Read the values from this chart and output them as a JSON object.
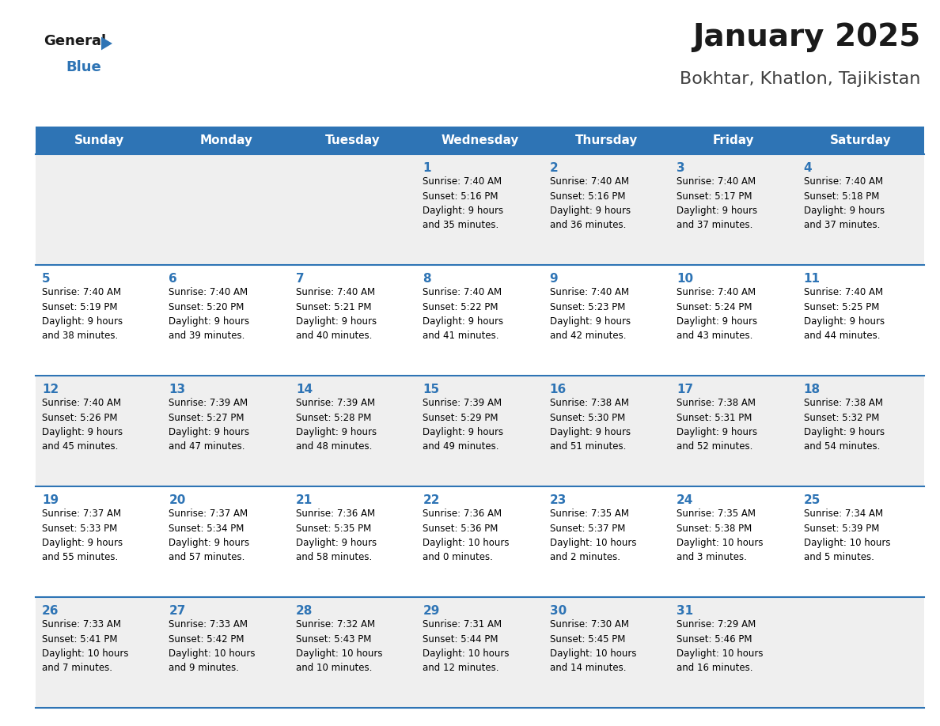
{
  "title": "January 2025",
  "subtitle": "Bokhtar, Khatlon, Tajikistan",
  "header_color": "#2E74B5",
  "header_text_color": "#FFFFFF",
  "days_of_week": [
    "Sunday",
    "Monday",
    "Tuesday",
    "Wednesday",
    "Thursday",
    "Friday",
    "Saturday"
  ],
  "row_colors": [
    "#EFEFEF",
    "#FFFFFF"
  ],
  "divider_color": "#2E74B5",
  "number_color": "#2E74B5",
  "text_color": "#000000",
  "background_color": "#FFFFFF",
  "logo_general_color": "#1a1a1a",
  "logo_blue_color": "#2E74B5",
  "logo_triangle_color": "#2E74B5",
  "title_color": "#1a1a1a",
  "subtitle_color": "#404040",
  "calendar_data": [
    [
      {
        "day": null,
        "info": null
      },
      {
        "day": null,
        "info": null
      },
      {
        "day": null,
        "info": null
      },
      {
        "day": 1,
        "info": "Sunrise: 7:40 AM\nSunset: 5:16 PM\nDaylight: 9 hours\nand 35 minutes."
      },
      {
        "day": 2,
        "info": "Sunrise: 7:40 AM\nSunset: 5:16 PM\nDaylight: 9 hours\nand 36 minutes."
      },
      {
        "day": 3,
        "info": "Sunrise: 7:40 AM\nSunset: 5:17 PM\nDaylight: 9 hours\nand 37 minutes."
      },
      {
        "day": 4,
        "info": "Sunrise: 7:40 AM\nSunset: 5:18 PM\nDaylight: 9 hours\nand 37 minutes."
      }
    ],
    [
      {
        "day": 5,
        "info": "Sunrise: 7:40 AM\nSunset: 5:19 PM\nDaylight: 9 hours\nand 38 minutes."
      },
      {
        "day": 6,
        "info": "Sunrise: 7:40 AM\nSunset: 5:20 PM\nDaylight: 9 hours\nand 39 minutes."
      },
      {
        "day": 7,
        "info": "Sunrise: 7:40 AM\nSunset: 5:21 PM\nDaylight: 9 hours\nand 40 minutes."
      },
      {
        "day": 8,
        "info": "Sunrise: 7:40 AM\nSunset: 5:22 PM\nDaylight: 9 hours\nand 41 minutes."
      },
      {
        "day": 9,
        "info": "Sunrise: 7:40 AM\nSunset: 5:23 PM\nDaylight: 9 hours\nand 42 minutes."
      },
      {
        "day": 10,
        "info": "Sunrise: 7:40 AM\nSunset: 5:24 PM\nDaylight: 9 hours\nand 43 minutes."
      },
      {
        "day": 11,
        "info": "Sunrise: 7:40 AM\nSunset: 5:25 PM\nDaylight: 9 hours\nand 44 minutes."
      }
    ],
    [
      {
        "day": 12,
        "info": "Sunrise: 7:40 AM\nSunset: 5:26 PM\nDaylight: 9 hours\nand 45 minutes."
      },
      {
        "day": 13,
        "info": "Sunrise: 7:39 AM\nSunset: 5:27 PM\nDaylight: 9 hours\nand 47 minutes."
      },
      {
        "day": 14,
        "info": "Sunrise: 7:39 AM\nSunset: 5:28 PM\nDaylight: 9 hours\nand 48 minutes."
      },
      {
        "day": 15,
        "info": "Sunrise: 7:39 AM\nSunset: 5:29 PM\nDaylight: 9 hours\nand 49 minutes."
      },
      {
        "day": 16,
        "info": "Sunrise: 7:38 AM\nSunset: 5:30 PM\nDaylight: 9 hours\nand 51 minutes."
      },
      {
        "day": 17,
        "info": "Sunrise: 7:38 AM\nSunset: 5:31 PM\nDaylight: 9 hours\nand 52 minutes."
      },
      {
        "day": 18,
        "info": "Sunrise: 7:38 AM\nSunset: 5:32 PM\nDaylight: 9 hours\nand 54 minutes."
      }
    ],
    [
      {
        "day": 19,
        "info": "Sunrise: 7:37 AM\nSunset: 5:33 PM\nDaylight: 9 hours\nand 55 minutes."
      },
      {
        "day": 20,
        "info": "Sunrise: 7:37 AM\nSunset: 5:34 PM\nDaylight: 9 hours\nand 57 minutes."
      },
      {
        "day": 21,
        "info": "Sunrise: 7:36 AM\nSunset: 5:35 PM\nDaylight: 9 hours\nand 58 minutes."
      },
      {
        "day": 22,
        "info": "Sunrise: 7:36 AM\nSunset: 5:36 PM\nDaylight: 10 hours\nand 0 minutes."
      },
      {
        "day": 23,
        "info": "Sunrise: 7:35 AM\nSunset: 5:37 PM\nDaylight: 10 hours\nand 2 minutes."
      },
      {
        "day": 24,
        "info": "Sunrise: 7:35 AM\nSunset: 5:38 PM\nDaylight: 10 hours\nand 3 minutes."
      },
      {
        "day": 25,
        "info": "Sunrise: 7:34 AM\nSunset: 5:39 PM\nDaylight: 10 hours\nand 5 minutes."
      }
    ],
    [
      {
        "day": 26,
        "info": "Sunrise: 7:33 AM\nSunset: 5:41 PM\nDaylight: 10 hours\nand 7 minutes."
      },
      {
        "day": 27,
        "info": "Sunrise: 7:33 AM\nSunset: 5:42 PM\nDaylight: 10 hours\nand 9 minutes."
      },
      {
        "day": 28,
        "info": "Sunrise: 7:32 AM\nSunset: 5:43 PM\nDaylight: 10 hours\nand 10 minutes."
      },
      {
        "day": 29,
        "info": "Sunrise: 7:31 AM\nSunset: 5:44 PM\nDaylight: 10 hours\nand 12 minutes."
      },
      {
        "day": 30,
        "info": "Sunrise: 7:30 AM\nSunset: 5:45 PM\nDaylight: 10 hours\nand 14 minutes."
      },
      {
        "day": 31,
        "info": "Sunrise: 7:29 AM\nSunset: 5:46 PM\nDaylight: 10 hours\nand 16 minutes."
      },
      {
        "day": null,
        "info": null
      }
    ]
  ]
}
